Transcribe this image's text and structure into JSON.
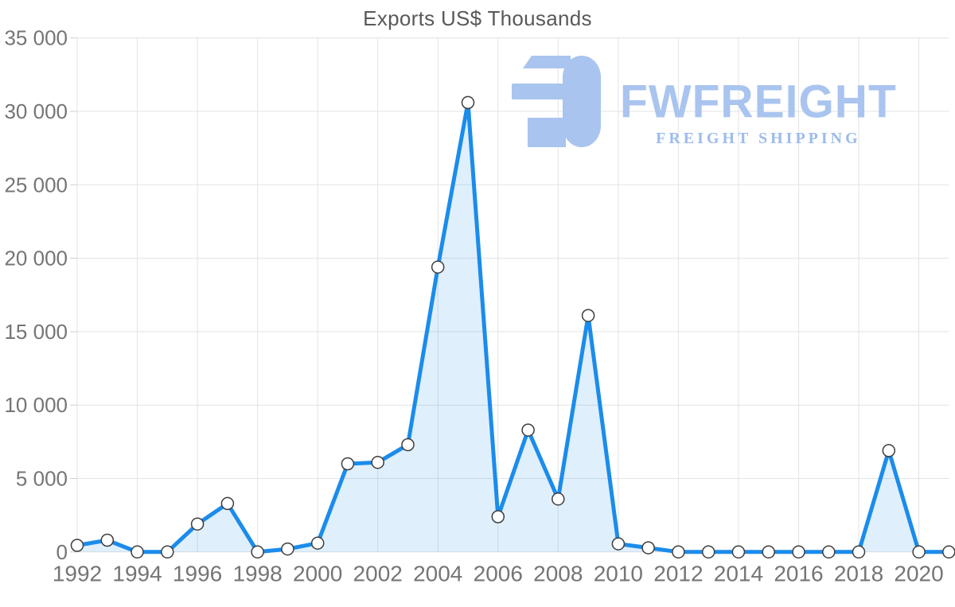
{
  "title": "Exports US$ Thousands",
  "watermark": {
    "brand": "FWFREIGHT",
    "tagline": "FREIGHT SHIPPING",
    "brand_color": "#a9c4ef",
    "tagline_color": "#9dbbec",
    "icon": "fwfreight-logo-mark"
  },
  "chart_data": {
    "type": "area",
    "title": "Exports US$ Thousands",
    "x": [
      1992,
      1993,
      1994,
      1995,
      1996,
      1997,
      1998,
      1999,
      2000,
      2001,
      2002,
      2003,
      2004,
      2005,
      2006,
      2007,
      2008,
      2009,
      2010,
      2011,
      2012,
      2013,
      2014,
      2015,
      2016,
      2017,
      2018,
      2019,
      2020,
      2021
    ],
    "series": [
      {
        "name": "Exports US$ Thousands",
        "values": [
          450,
          800,
          0,
          0,
          1900,
          3300,
          0,
          200,
          600,
          6000,
          6100,
          7300,
          19400,
          30600,
          2400,
          8300,
          3600,
          16100,
          550,
          280,
          0,
          0,
          0,
          0,
          0,
          0,
          0,
          6900,
          0,
          0
        ]
      }
    ],
    "xlabel": "",
    "ylabel": "",
    "ylim": [
      0,
      35000
    ],
    "ytick_step": 5000,
    "y_tick_labels": [
      "0",
      "5 000",
      "10 000",
      "15 000",
      "20 000",
      "25 000",
      "30 000",
      "35 000"
    ],
    "x_tick_labels": [
      "1992",
      "1994",
      "1996",
      "1998",
      "2000",
      "2002",
      "2004",
      "2006",
      "2008",
      "2010",
      "2012",
      "2014",
      "2016",
      "2018",
      "2020"
    ],
    "grid": true,
    "legend": false,
    "marker": "circle",
    "colors": {
      "line": "#1b8ceb",
      "fill": "rgba(27,140,235,0.14)",
      "marker_fill": "#ffffff",
      "marker_stroke": "#3d3d3d",
      "grid": "#e3e3e3",
      "tick": "#cfcfcf",
      "axis_text": "#757575",
      "title_text": "#595959"
    }
  }
}
